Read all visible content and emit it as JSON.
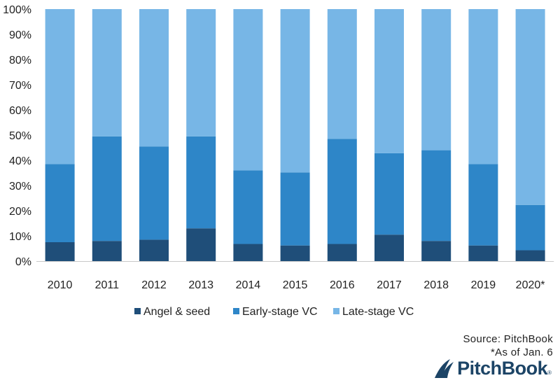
{
  "chart_data": {
    "type": "bar",
    "stacked": true,
    "title": "",
    "xlabel": "",
    "ylabel": "",
    "ylim": [
      0,
      100
    ],
    "y_ticks": [
      "0%",
      "10%",
      "20%",
      "30%",
      "40%",
      "50%",
      "60%",
      "70%",
      "80%",
      "90%",
      "100%"
    ],
    "categories": [
      "2010",
      "2011",
      "2012",
      "2013",
      "2014",
      "2015",
      "2016",
      "2017",
      "2018",
      "2019",
      "2020*"
    ],
    "series": [
      {
        "name": "Angel & seed",
        "color": "#1f4e79",
        "values": [
          7.5,
          8,
          8.5,
          13,
          6.8,
          6.2,
          6.8,
          10.5,
          8,
          6.2,
          4.3
        ]
      },
      {
        "name": "Early-stage VC",
        "color": "#2e86c8",
        "values": [
          31,
          41.5,
          37,
          36.5,
          29.2,
          29,
          41.7,
          32.3,
          36,
          32.3,
          18
        ]
      },
      {
        "name": "Late-stage VC",
        "color": "#77b6e6",
        "values": [
          61.5,
          50.5,
          54.5,
          50.5,
          64,
          64.8,
          51.5,
          57.2,
          56,
          61.5,
          77.7
        ]
      }
    ],
    "grid": false,
    "legend_position": "bottom"
  },
  "source": "Source: PitchBook",
  "note": "*As of Jan. 6",
  "logo": {
    "text": "PitchBook",
    "mark_color": "#1c4466"
  }
}
